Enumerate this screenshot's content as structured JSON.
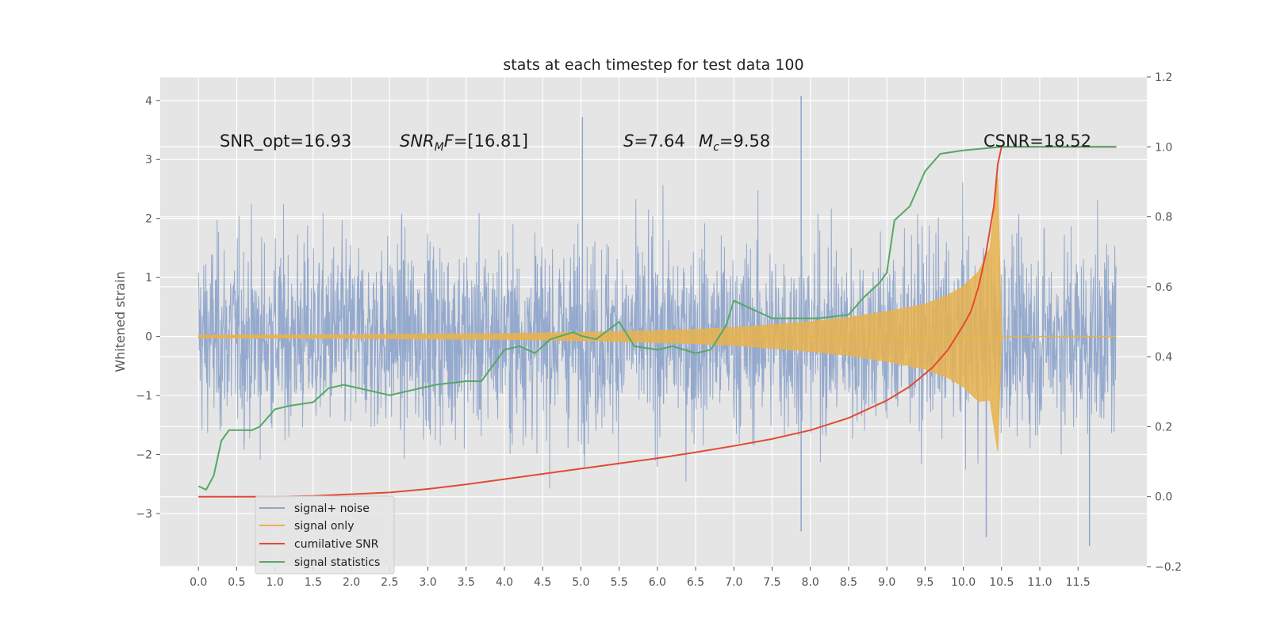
{
  "chart_data": {
    "type": "line",
    "title": "stats at each timestep for test data 100",
    "ylabel": "Whitened strain",
    "xlabel": "",
    "xlim": [
      -0.5,
      12.4
    ],
    "ylim": [
      -3.9,
      4.4
    ],
    "y2lim": [
      -0.2,
      1.2
    ],
    "xticks": [
      "0.0",
      "0.5",
      "1.0",
      "1.5",
      "2.0",
      "2.5",
      "3.0",
      "3.5",
      "4.0",
      "4.5",
      "5.0",
      "5.5",
      "6.0",
      "6.5",
      "7.0",
      "7.5",
      "8.0",
      "8.5",
      "9.0",
      "9.5",
      "10.0",
      "10.5",
      "11.0",
      "11.5"
    ],
    "yticks": [
      "−3",
      "−2",
      "−1",
      "0",
      "1",
      "2",
      "3",
      "4"
    ],
    "yticks_values": [
      -3,
      -2,
      -1,
      0,
      1,
      2,
      3,
      4
    ],
    "y2ticks": [
      "−0.2",
      "0.0",
      "0.2",
      "0.4",
      "0.6",
      "0.8",
      "1.0",
      "1.2"
    ],
    "y2ticks_values": [
      -0.2,
      0,
      0.2,
      0.4,
      0.6,
      0.8,
      1.0,
      1.2
    ],
    "grid": true,
    "legend_position": "lower-left",
    "annotations": {
      "snr_opt": "SNR_opt=16.93",
      "snr_mf_sym": "SNR",
      "snr_mf_sub": "M",
      "snr_mf_sym2": "F",
      "snr_mf_val": "=[16.81]",
      "s_sym": "S",
      "s_val": "=7.64",
      "mc_sym": "M",
      "mc_sub": "c",
      "mc_val": "=9.58",
      "csnr": "CSNR=18.52"
    },
    "series": [
      {
        "name": "signal+ noise",
        "axis": "left",
        "color": "#8fa5cb",
        "noise_envelope_x": [
          0.0,
          12.0
        ],
        "noise_envelope_y": [
          -4.0,
          4.1
        ],
        "noise_spikes": [
          [
            5.02,
            3.72
          ],
          [
            7.88,
            4.08
          ],
          [
            6.0,
            1.05
          ],
          [
            6.0,
            -0.8
          ],
          [
            10.3,
            -3.4
          ],
          [
            11.65,
            -3.55
          ],
          [
            7.88,
            -3.3
          ]
        ]
      },
      {
        "name": "signal only",
        "axis": "left",
        "color": "#e8b34e",
        "envelope_x": [
          0.0,
          1.0,
          2.0,
          3.0,
          4.0,
          5.0,
          6.0,
          6.5,
          7.0,
          7.5,
          8.0,
          8.5,
          9.0,
          9.5,
          9.8,
          10.0,
          10.2,
          10.35,
          10.45,
          10.5,
          12.0
        ],
        "envelope_y": [
          0.02,
          0.025,
          0.03,
          0.04,
          0.05,
          0.07,
          0.1,
          0.12,
          0.15,
          0.2,
          0.25,
          0.32,
          0.42,
          0.55,
          0.7,
          0.85,
          1.1,
          1.5,
          2.7,
          0.0,
          0.0
        ]
      },
      {
        "name": "cumilative SNR",
        "axis": "right",
        "color": "#e24a33",
        "x": [
          0.0,
          1.0,
          1.5,
          2.0,
          2.5,
          3.0,
          3.5,
          4.0,
          4.5,
          5.0,
          5.5,
          6.0,
          6.5,
          7.0,
          7.5,
          8.0,
          8.5,
          9.0,
          9.3,
          9.6,
          9.8,
          10.0,
          10.1,
          10.2,
          10.3,
          10.4,
          10.45,
          10.5,
          12.0
        ],
        "y": [
          0.0,
          0.0,
          0.002,
          0.007,
          0.012,
          0.022,
          0.035,
          0.05,
          0.065,
          0.08,
          0.095,
          0.11,
          0.127,
          0.145,
          0.165,
          0.19,
          0.225,
          0.275,
          0.315,
          0.37,
          0.42,
          0.49,
          0.53,
          0.6,
          0.7,
          0.83,
          0.95,
          1.0,
          1.0
        ]
      },
      {
        "name": "signal statistics",
        "axis": "right",
        "color": "#55a868",
        "x": [
          0.0,
          0.1,
          0.2,
          0.3,
          0.4,
          0.5,
          0.7,
          0.8,
          1.0,
          1.2,
          1.5,
          1.7,
          1.9,
          2.1,
          2.5,
          2.9,
          3.1,
          3.5,
          3.7,
          3.9,
          4.0,
          4.2,
          4.4,
          4.6,
          4.9,
          5.0,
          5.2,
          5.5,
          5.7,
          6.0,
          6.2,
          6.5,
          6.7,
          6.9,
          7.0,
          7.2,
          7.5,
          7.8,
          8.1,
          8.5,
          8.7,
          8.9,
          9.0,
          9.1,
          9.3,
          9.5,
          9.7,
          10.0,
          10.5,
          11.0,
          12.0
        ],
        "y": [
          0.03,
          0.02,
          0.06,
          0.16,
          0.19,
          0.19,
          0.19,
          0.2,
          0.25,
          0.26,
          0.27,
          0.31,
          0.32,
          0.31,
          0.29,
          0.31,
          0.32,
          0.33,
          0.33,
          0.39,
          0.42,
          0.43,
          0.41,
          0.45,
          0.47,
          0.46,
          0.45,
          0.5,
          0.43,
          0.42,
          0.43,
          0.41,
          0.42,
          0.49,
          0.56,
          0.54,
          0.51,
          0.51,
          0.51,
          0.52,
          0.57,
          0.61,
          0.64,
          0.79,
          0.83,
          0.93,
          0.98,
          0.99,
          1.0,
          1.0,
          1.0
        ]
      }
    ]
  }
}
